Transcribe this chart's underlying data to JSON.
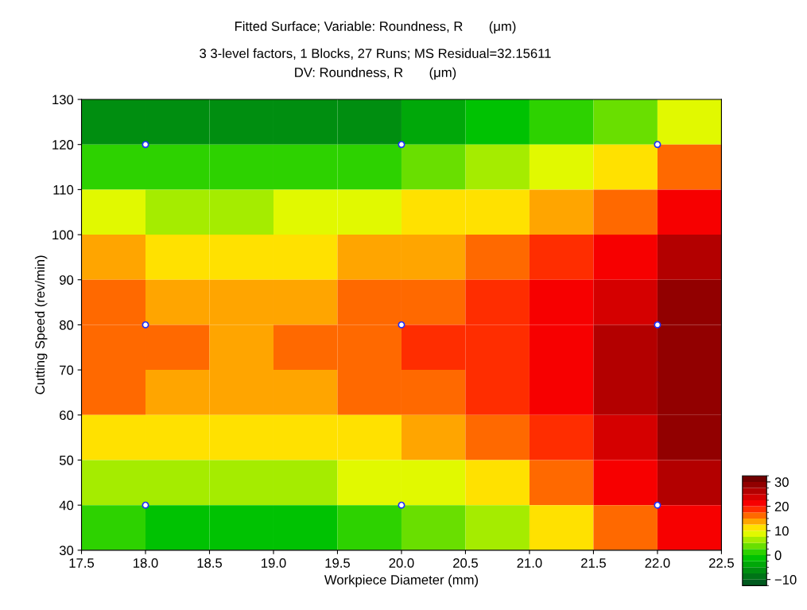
{
  "chart_data": {
    "type": "heatmap",
    "title": "Fitted Surface; Variable: Roundness, R       (μm)",
    "subtitle": "3 3-level factors, 1 Blocks, 27 Runs; MS Residual=32.15611\nDV: Roundness, R       (μm)",
    "xlabel": "Workpiece Diameter (mm)",
    "ylabel": "Cutting Speed (rev/min)",
    "x": [
      17.75,
      18.25,
      18.75,
      19.25,
      19.75,
      20.25,
      20.75,
      21.25,
      21.75,
      22.25
    ],
    "y": [
      125,
      115,
      105,
      95,
      85,
      75,
      65,
      55,
      45,
      35
    ],
    "cells": [
      [
        -6.3,
        -7.1,
        -7.3,
        -6.8,
        -5.7,
        -4.0,
        -1.7,
        1.2,
        4.6,
        8.8
      ],
      [
        1.8,
        1.1,
        0.9,
        1.4,
        2.4,
        3.9,
        6.0,
        8.6,
        11.8,
        15.6
      ],
      [
        8.1,
        7.4,
        7.3,
        7.6,
        8.6,
        10.0,
        11.9,
        14.4,
        17.4,
        21.0
      ],
      [
        12.6,
        11.9,
        11.7,
        12.1,
        13.0,
        14.4,
        16.2,
        18.6,
        21.6,
        25.1
      ],
      [
        15.2,
        14.4,
        14.3,
        14.6,
        15.5,
        16.9,
        18.8,
        21.3,
        24.3,
        27.9
      ],
      [
        16.0,
        15.2,
        14.9,
        15.3,
        16.2,
        17.7,
        19.8,
        22.4,
        25.6,
        29.4
      ],
      [
        15.0,
        14.0,
        13.8,
        14.1,
        15.1,
        16.8,
        19.0,
        21.8,
        25.4,
        29.5
      ],
      [
        12.1,
        11.0,
        10.7,
        11.1,
        12.2,
        14.0,
        16.5,
        19.7,
        23.7,
        28.4
      ],
      [
        7.4,
        6.2,
        5.8,
        6.2,
        7.5,
        9.5,
        12.4,
        16.0,
        20.5,
        25.9
      ],
      [
        0.9,
        -0.6,
        -1.1,
        -0.6,
        0.9,
        3.2,
        6.5,
        10.7,
        15.9,
        22.1
      ]
    ],
    "clim": [
      -12.5,
      32.5
    ],
    "cticks": [
      -10,
      0,
      10,
      20,
      30
    ],
    "series": [
      {
        "type": "scatter",
        "color": "#ffffff",
        "x": [
          18,
          20,
          22,
          18,
          20,
          22,
          18,
          20,
          22
        ],
        "values": [
          120,
          120,
          120,
          80,
          80,
          80,
          40,
          40,
          40
        ]
      }
    ],
    "xlim": [
      17.5,
      22.5
    ],
    "xticks": [
      17.5,
      {
        "value": 18,
        "label": "18.0"
      },
      18.5,
      {
        "value": 19,
        "label": "19.0"
      },
      19.5,
      {
        "value": 20,
        "label": "20.0"
      },
      20.5,
      {
        "value": 21,
        "label": "21.0"
      },
      21.5,
      {
        "value": 22,
        "label": "22.0"
      },
      22.5
    ],
    "ylim": [
      30,
      130
    ],
    "yticks": [
      30,
      40,
      50,
      60,
      70,
      80,
      90,
      100,
      110,
      120,
      130
    ],
    "marker": "circle"
  }
}
